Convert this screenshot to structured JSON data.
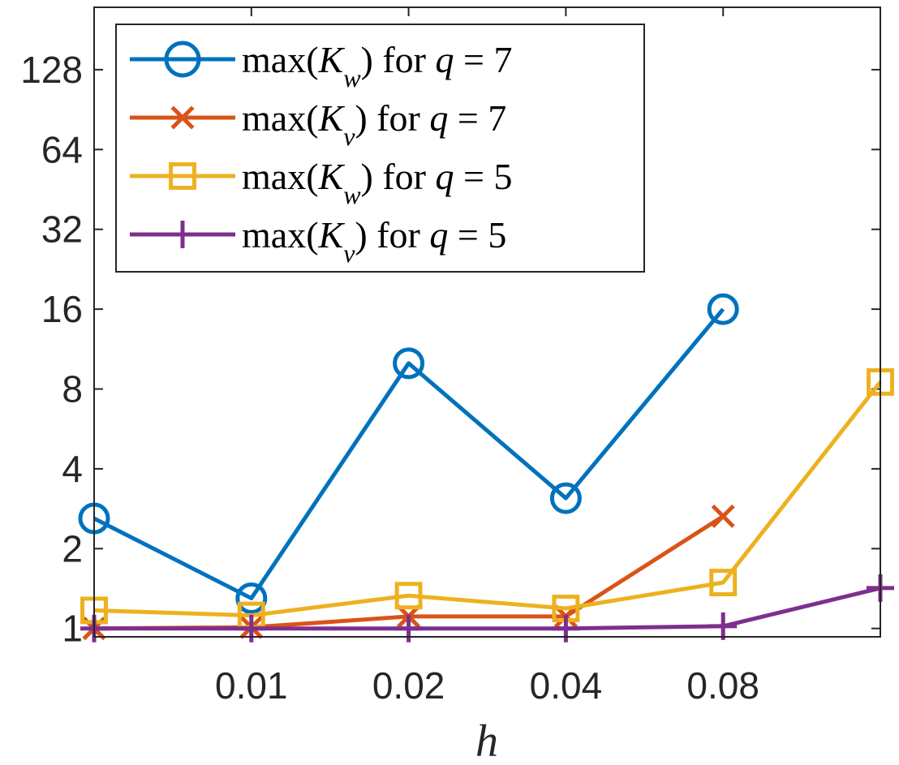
{
  "chart_data": {
    "type": "line",
    "title": "",
    "xlabel": "h",
    "ylabel": "",
    "yscale": "log2",
    "ylim": [
      0.93,
      220
    ],
    "xlim": [
      0,
      5
    ],
    "x_positions": [
      0,
      1,
      2,
      3,
      4,
      5
    ],
    "x_tick_positions": [
      1,
      2,
      3,
      4
    ],
    "x_tick_labels": [
      "0.01",
      "0.02",
      "0.04",
      "0.08"
    ],
    "y_ticks": [
      1,
      2,
      4,
      8,
      16,
      32,
      64,
      128
    ],
    "y_tick_labels": [
      "1",
      "2",
      "4",
      "8",
      "16",
      "32",
      "64",
      "128"
    ],
    "legend_position": "top-left",
    "series": [
      {
        "name_prefix": "max(",
        "name_var": "K",
        "name_sub": "w",
        "name_mid": ") for ",
        "name_q": "q",
        "name_eq": " = 7",
        "marker": "circle",
        "color": "#0072BD",
        "values": [
          2.6,
          1.3,
          10.0,
          3.1,
          16.0,
          null
        ]
      },
      {
        "name_prefix": "max(",
        "name_var": "K",
        "name_sub": "v",
        "name_mid": ") for ",
        "name_q": "q",
        "name_eq": " = 7",
        "marker": "x",
        "color": "#D95319",
        "values": [
          1.0,
          1.01,
          1.11,
          1.11,
          2.65,
          null
        ]
      },
      {
        "name_prefix": "max(",
        "name_var": "K",
        "name_sub": "w",
        "name_mid": ") for ",
        "name_q": "q",
        "name_eq": " = 5",
        "marker": "square",
        "color": "#EDB120",
        "values": [
          1.17,
          1.12,
          1.33,
          1.19,
          1.49,
          8.5
        ]
      },
      {
        "name_prefix": "max(",
        "name_var": "K",
        "name_sub": "v",
        "name_mid": ") for ",
        "name_q": "q",
        "name_eq": " = 5",
        "marker": "plus",
        "color": "#7E2F8E",
        "values": [
          1.0,
          1.0,
          1.0,
          1.0,
          1.02,
          1.42
        ]
      }
    ]
  }
}
